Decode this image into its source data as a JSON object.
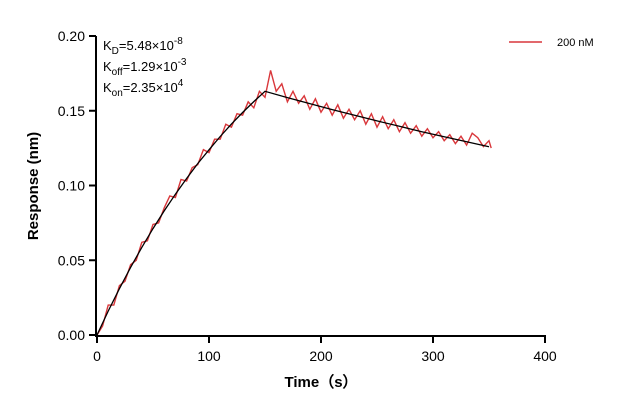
{
  "chart_data": {
    "type": "line",
    "xlabel": "Time（s）",
    "ylabel": "Response (nm)",
    "xlim": [
      0,
      400
    ],
    "ylim": [
      0,
      0.2
    ],
    "xticks": [
      "0",
      "100",
      "200",
      "300",
      "400"
    ],
    "yticks": [
      "0.00",
      "0.05",
      "0.10",
      "0.15",
      "0.20"
    ],
    "grid": false,
    "legend_position": "top-right",
    "annotations": [
      {
        "base": "K",
        "sub": "D",
        "text": "=5.48×10",
        "sup": "-8"
      },
      {
        "base": "K",
        "sub": "off",
        "text": "=1.29×10",
        "sup": "-3"
      },
      {
        "base": "K",
        "sub": "on",
        "text": "=2.35×10",
        "sup": "4"
      }
    ],
    "series": [
      {
        "name": "200 nM",
        "color": "#d9373b",
        "x": [
          0,
          5,
          10,
          15,
          20,
          25,
          30,
          35,
          40,
          45,
          50,
          55,
          60,
          65,
          70,
          75,
          80,
          85,
          90,
          95,
          100,
          105,
          110,
          115,
          120,
          125,
          130,
          135,
          140,
          145,
          150,
          155,
          160,
          165,
          170,
          175,
          180,
          185,
          190,
          195,
          200,
          205,
          210,
          215,
          220,
          225,
          230,
          235,
          240,
          245,
          250,
          255,
          260,
          265,
          270,
          275,
          280,
          285,
          290,
          295,
          300,
          305,
          310,
          315,
          320,
          325,
          330,
          335,
          340,
          345,
          350,
          352
        ],
        "y": [
          0,
          0.006,
          0.02,
          0.02,
          0.033,
          0.036,
          0.047,
          0.05,
          0.062,
          0.063,
          0.074,
          0.075,
          0.085,
          0.093,
          0.092,
          0.104,
          0.103,
          0.112,
          0.114,
          0.124,
          0.122,
          0.131,
          0.131,
          0.141,
          0.139,
          0.148,
          0.147,
          0.156,
          0.152,
          0.163,
          0.159,
          0.177,
          0.163,
          0.168,
          0.156,
          0.163,
          0.155,
          0.16,
          0.151,
          0.158,
          0.149,
          0.155,
          0.147,
          0.154,
          0.145,
          0.151,
          0.144,
          0.15,
          0.141,
          0.148,
          0.139,
          0.146,
          0.138,
          0.144,
          0.136,
          0.142,
          0.135,
          0.14,
          0.133,
          0.138,
          0.132,
          0.136,
          0.13,
          0.134,
          0.128,
          0.133,
          0.127,
          0.135,
          0.132,
          0.126,
          0.13,
          0.125
        ]
      },
      {
        "color": "#000000",
        "x": [
          0,
          10,
          20,
          30,
          40,
          50,
          60,
          70,
          80,
          90,
          100,
          110,
          120,
          130,
          140,
          150,
          170,
          190,
          210,
          230,
          250,
          270,
          290,
          310,
          330,
          350
        ],
        "y": [
          0,
          0.016,
          0.031,
          0.0452,
          0.0586,
          0.0712,
          0.083,
          0.0942,
          0.1047,
          0.1147,
          0.1239,
          0.1328,
          0.1411,
          0.1488,
          0.1561,
          0.163,
          0.1588,
          0.1548,
          0.1508,
          0.147,
          0.1432,
          0.1396,
          0.136,
          0.1326,
          0.1292,
          0.1259
        ]
      }
    ]
  }
}
